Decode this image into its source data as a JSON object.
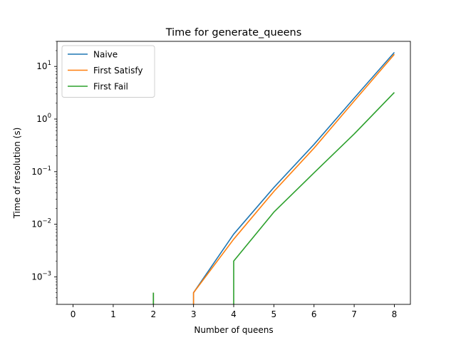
{
  "chart_data": {
    "type": "line",
    "title": "Time for generate_queens",
    "xlabel": "Number of queens",
    "ylabel": "Time of resolution (s)",
    "x_ticks": [
      "0",
      "1",
      "2",
      "3",
      "4",
      "5",
      "6",
      "7",
      "8"
    ],
    "y_scale": "log",
    "y_ticks": [
      {
        "base": "10",
        "exp": "−3",
        "value": 0.001
      },
      {
        "base": "10",
        "exp": "−2",
        "value": 0.01
      },
      {
        "base": "10",
        "exp": "−1",
        "value": 0.1
      },
      {
        "base": "10",
        "exp": "0",
        "value": 1
      },
      {
        "base": "10",
        "exp": "1",
        "value": 10
      }
    ],
    "xlim": [
      -0.4,
      8.4
    ],
    "ylim": [
      0.0003,
      30
    ],
    "grid": false,
    "legend_position": "top-left",
    "series": [
      {
        "name": "Naive",
        "color": "#1f77b4",
        "points": [
          [
            2,
            0.0005
          ],
          [
            2,
            0.0001
          ],
          [
            3,
            0.0001
          ],
          [
            3,
            0.0005
          ],
          [
            4,
            0.0065
          ],
          [
            5,
            0.05
          ],
          [
            6,
            0.33
          ],
          [
            7,
            2.5
          ],
          [
            8,
            18.5
          ]
        ]
      },
      {
        "name": "First Satisfy",
        "color": "#ff7f0e",
        "points": [
          [
            2,
            0.0005
          ],
          [
            2,
            0.0001
          ],
          [
            3,
            0.0001
          ],
          [
            3,
            0.0005
          ],
          [
            4,
            0.0052
          ],
          [
            5,
            0.042
          ],
          [
            6,
            0.28
          ],
          [
            7,
            2.2
          ],
          [
            8,
            17.0
          ]
        ]
      },
      {
        "name": "First Fail",
        "color": "#2ca02c",
        "points": [
          [
            2,
            0.0005
          ],
          [
            2,
            0.0001
          ],
          [
            4,
            0.0001
          ],
          [
            4,
            0.002
          ],
          [
            5,
            0.017
          ],
          [
            6,
            0.095
          ],
          [
            7,
            0.52
          ],
          [
            8,
            3.2
          ]
        ]
      }
    ]
  }
}
